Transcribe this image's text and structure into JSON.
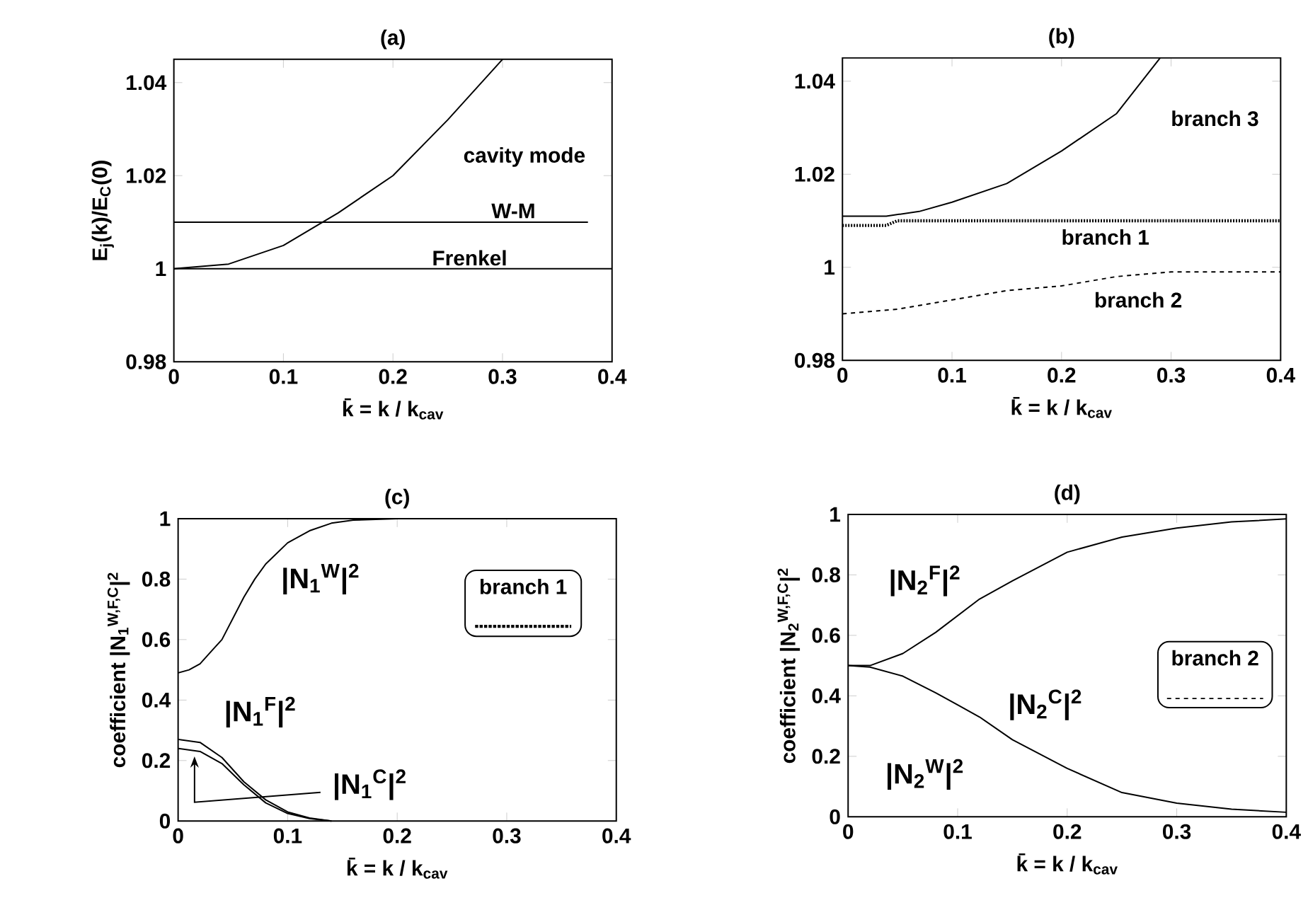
{
  "chart_data": [
    {
      "type": "line",
      "title": "(a)",
      "xlabel": "k̄ = k / k$_{cav}$",
      "ylabel": "E$_{j}$(k)/E$_{C}$(0)",
      "xlim": [
        0,
        0.4
      ],
      "ylim": [
        0.98,
        1.045
      ],
      "xticks": [
        0,
        0.1,
        0.2,
        0.3,
        0.4
      ],
      "yticks": [
        0.98,
        1,
        1.02,
        1.04
      ],
      "series": [
        {
          "name": "cavity mode",
          "color": "#000000",
          "line_style": "solid",
          "x": [
            0,
            0.05,
            0.1,
            0.15,
            0.2,
            0.25,
            0.3
          ],
          "values": [
            1,
            1.001,
            1.005,
            1.012,
            1.02,
            1.032,
            1.045
          ]
        },
        {
          "name": "W-M",
          "color": "#000000",
          "line_style": "solid",
          "x": [
            0,
            0.378
          ],
          "values": [
            1.01,
            1.01
          ]
        },
        {
          "name": "Frenkel",
          "color": "#000000",
          "line_style": "solid",
          "x": [
            0,
            0.4
          ],
          "values": [
            1,
            1
          ]
        }
      ]
    },
    {
      "type": "line",
      "title": "(b)",
      "xlabel": "k̄ = k / k$_{cav}$",
      "xlim": [
        0,
        0.4
      ],
      "ylim": [
        0.98,
        1.045
      ],
      "xticks": [
        0,
        0.1,
        0.2,
        0.3,
        0.4
      ],
      "yticks": [
        0.98,
        1,
        1.02,
        1.04
      ],
      "series": [
        {
          "name": "branch 3",
          "color": "#000000",
          "line_style": "solid",
          "x": [
            0,
            0.04,
            0.07,
            0.1,
            0.15,
            0.2,
            0.25,
            0.29
          ],
          "values": [
            1.011,
            1.011,
            1.012,
            1.014,
            1.018,
            1.025,
            1.033,
            1.045
          ]
        },
        {
          "name": "branch 1",
          "color": "#000000",
          "line_style": "dotted",
          "x": [
            0,
            0.04,
            0.05,
            0.4
          ],
          "values": [
            1.009,
            1.009,
            1.01,
            1.01
          ]
        },
        {
          "name": "branch 2",
          "color": "#000000",
          "line_style": "dashed",
          "x": [
            0,
            0.05,
            0.1,
            0.15,
            0.2,
            0.25,
            0.3,
            0.35,
            0.4
          ],
          "values": [
            0.99,
            0.991,
            0.993,
            0.995,
            0.996,
            0.998,
            0.999,
            0.999,
            0.999
          ]
        }
      ]
    },
    {
      "type": "line",
      "title": "(c)",
      "xlabel": "k̄ = k / k$_{cav}$",
      "ylabel": "coefficient |N$_{1}$$^{W,F,C}$|$^{2}$",
      "xlim": [
        0,
        0.4
      ],
      "ylim": [
        0,
        1
      ],
      "xticks": [
        0,
        0.1,
        0.2,
        0.3,
        0.4
      ],
      "yticks": [
        0,
        0.2,
        0.4,
        0.6,
        0.8,
        1
      ],
      "series": [
        {
          "name": "|N$_{1}$$^{W}$|$^{2}$",
          "color": "#000000",
          "line_style": "solid",
          "x": [
            0,
            0.01,
            0.02,
            0.03,
            0.04,
            0.05,
            0.06,
            0.07,
            0.08,
            0.1,
            0.12,
            0.14,
            0.16,
            0.2
          ],
          "values": [
            0.49,
            0.5,
            0.52,
            0.56,
            0.6,
            0.67,
            0.74,
            0.8,
            0.85,
            0.92,
            0.96,
            0.985,
            0.995,
            1
          ]
        },
        {
          "name": "|N$_{1}$$^{F}$|$^{2}$",
          "color": "#000000",
          "line_style": "solid",
          "x": [
            0,
            0.02,
            0.04,
            0.06,
            0.08,
            0.1,
            0.12,
            0.14
          ],
          "values": [
            0.27,
            0.26,
            0.21,
            0.13,
            0.07,
            0.03,
            0.01,
            0
          ]
        },
        {
          "name": "|N$_{1}$$^{C}$|$^{2}$",
          "color": "#000000",
          "line_style": "solid",
          "x": [
            0,
            0.02,
            0.04,
            0.06,
            0.08,
            0.1,
            0.12,
            0.14
          ],
          "values": [
            0.24,
            0.23,
            0.19,
            0.12,
            0.06,
            0.025,
            0.008,
            0
          ]
        }
      ],
      "annotations": [
        "branch 1"
      ]
    },
    {
      "type": "line",
      "title": "(d)",
      "xlabel": "k̄ = k / k$_{cav}$",
      "ylabel": "coefficient |N$_{2}$$^{W,F,C}$|$^{2}$",
      "xlim": [
        0,
        0.4
      ],
      "ylim": [
        0,
        1
      ],
      "xticks": [
        0,
        0.1,
        0.2,
        0.3,
        0.4
      ],
      "yticks": [
        0,
        0.2,
        0.4,
        0.6,
        0.8,
        1
      ],
      "series": [
        {
          "name": "|N$_{2}$$^{F}$|$^{2}$",
          "color": "#000000",
          "line_style": "solid",
          "x": [
            0,
            0.02,
            0.05,
            0.08,
            0.1,
            0.12,
            0.15,
            0.2,
            0.25,
            0.3,
            0.35,
            0.4
          ],
          "values": [
            0.5,
            0.5,
            0.54,
            0.61,
            0.665,
            0.72,
            0.78,
            0.875,
            0.925,
            0.955,
            0.975,
            0.985
          ]
        },
        {
          "name": "|N$_{2}$$^{C}$|$^{2}$",
          "color": "#000000",
          "line_style": "solid",
          "x": [
            0,
            0.02,
            0.05,
            0.08,
            0.1,
            0.12,
            0.15,
            0.2,
            0.25,
            0.3,
            0.35,
            0.4
          ],
          "values": [
            0.5,
            0.495,
            0.465,
            0.41,
            0.37,
            0.33,
            0.255,
            0.16,
            0.08,
            0.045,
            0.025,
            0.015
          ]
        }
      ],
      "annotations": [
        "|N$_{2}$$^{W}$|$^{2}$",
        "branch 2"
      ]
    }
  ]
}
